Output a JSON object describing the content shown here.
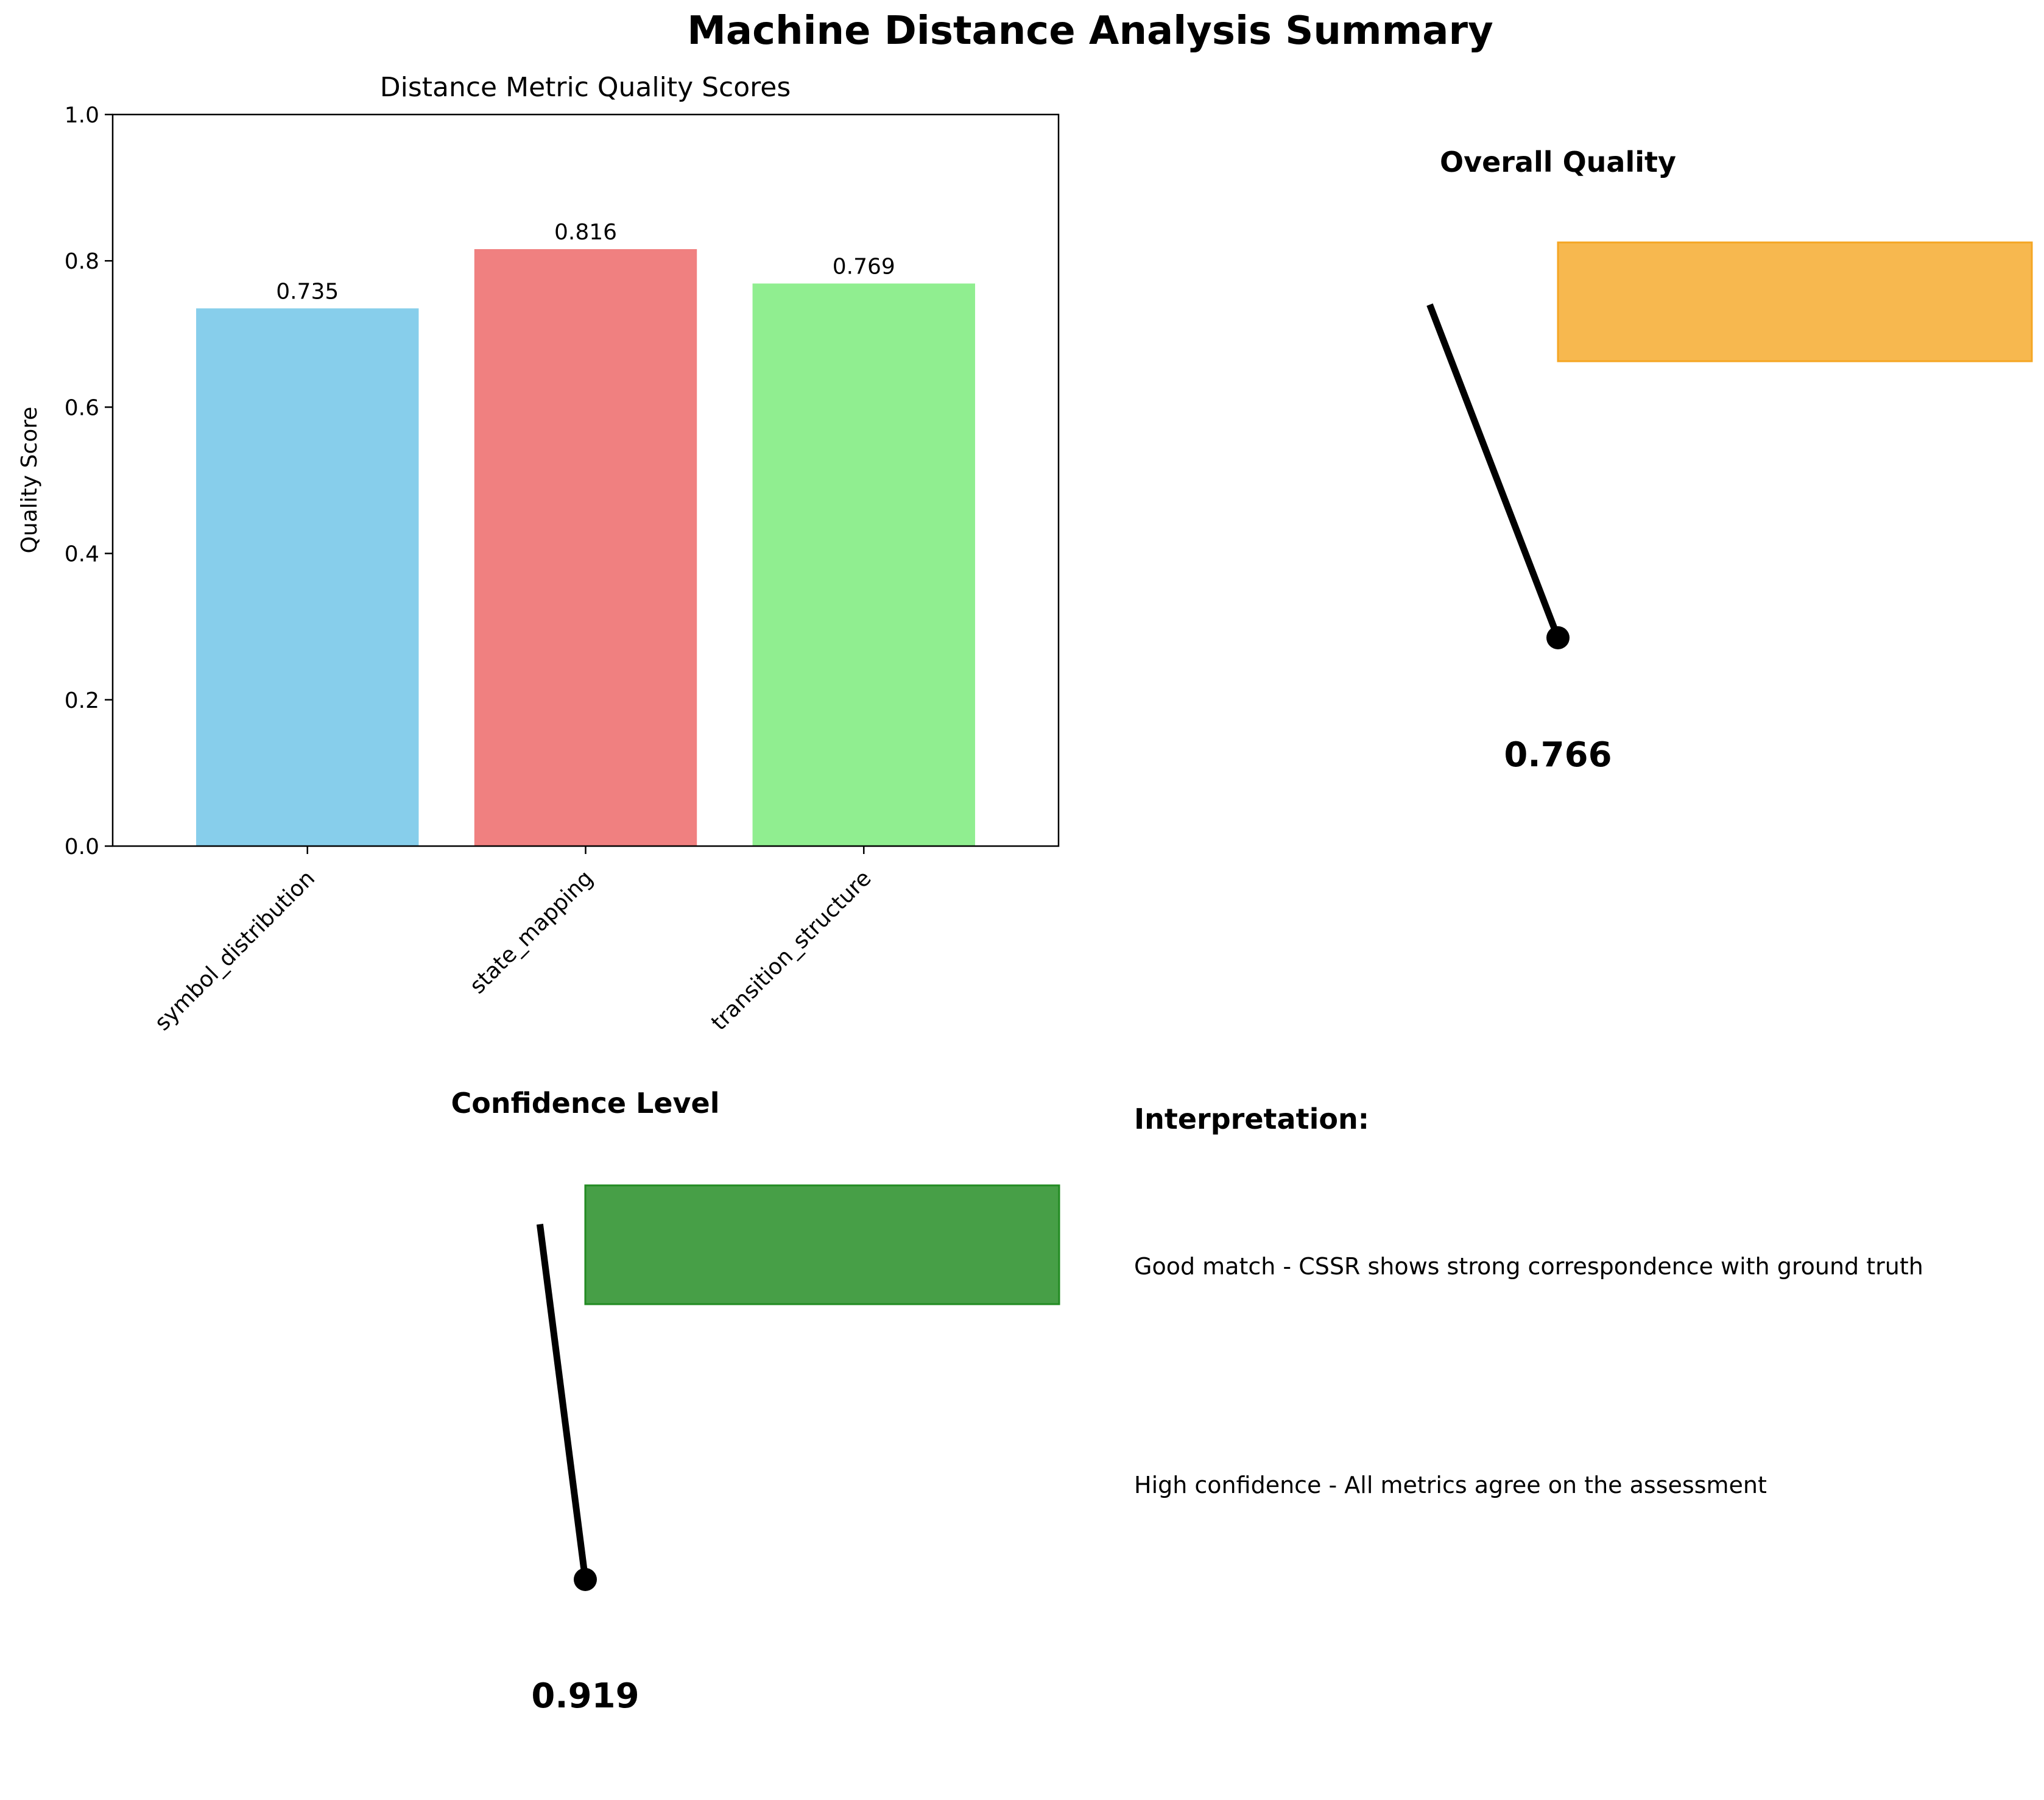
{
  "figure_title": "Machine Distance Analysis Summary",
  "chart_data": [
    {
      "type": "bar",
      "title": "Distance Metric Quality Scores",
      "xlabel": "",
      "ylabel": "Quality Score",
      "ylim": [
        0,
        1
      ],
      "yticks": [
        0.0,
        0.2,
        0.4,
        0.6,
        0.8,
        1.0
      ],
      "ytick_labels": [
        "0.0",
        "0.2",
        "0.4",
        "0.6",
        "0.8",
        "1.0"
      ],
      "categories": [
        "symbol_distribution",
        "state_mapping",
        "transition_structure"
      ],
      "values": [
        0.735,
        0.816,
        0.769
      ],
      "value_labels": [
        "0.735",
        "0.816",
        "0.769"
      ],
      "colors": [
        "#87ceeb",
        "#f08080",
        "#90ee90"
      ]
    },
    {
      "type": "gauge",
      "title": "Overall Quality",
      "value": 0.766,
      "value_label": "0.766",
      "band_color": "#f5a623",
      "needle_color": "#000000"
    },
    {
      "type": "gauge",
      "title": "Confidence Level",
      "value": 0.919,
      "value_label": "0.919",
      "band_color": "#228b22",
      "needle_color": "#000000"
    }
  ],
  "interpretation": {
    "heading": "Interpretation:",
    "lines": [
      "Good match - CSSR shows strong correspondence with ground truth",
      "High confidence - All metrics agree on the assessment"
    ]
  }
}
